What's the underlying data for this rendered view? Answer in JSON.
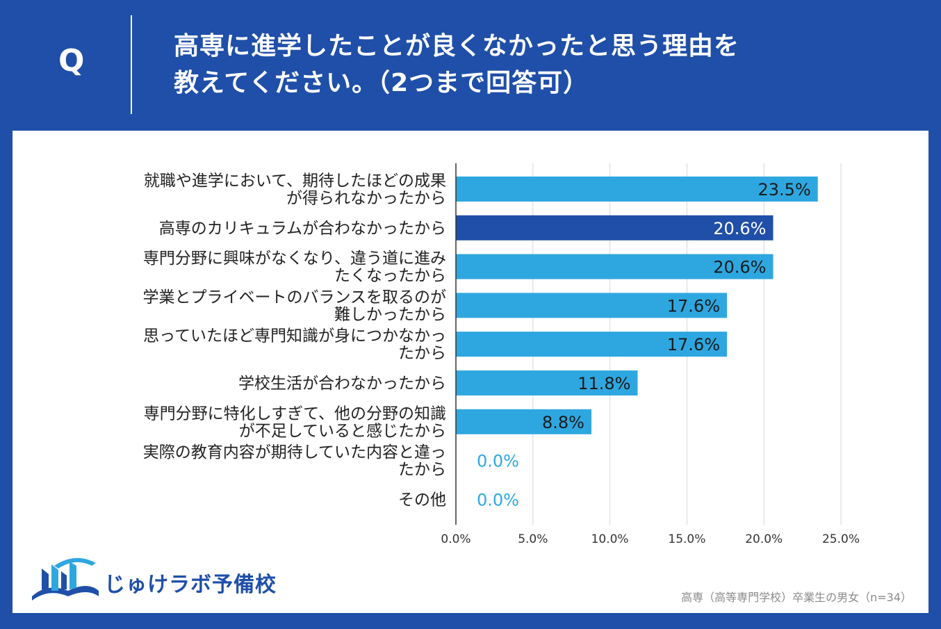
{
  "header": {
    "q_label": "Q",
    "title_line1": "高専に進学したことが良くなかったと思う理由を",
    "title_line2": "教えてください。（2つまで回答可）"
  },
  "brand": {
    "name": "じゅけラボ予備校"
  },
  "footnote": "高専（高等専門学校）卒業生の男女（n=34）",
  "colors": {
    "header_bg": "#1f4fa8",
    "bar": "#2ea7e0",
    "bar_highlight": "#1f4fa8",
    "zero_label": "#2ea7e0"
  },
  "chart_data": {
    "type": "bar",
    "orientation": "horizontal",
    "title": "高専に進学したことが良くなかったと思う理由を教えてください。（2つまで回答可）",
    "categories": [
      [
        "就職や進学において、期待したほどの成果",
        "が得られなかったから"
      ],
      [
        "高専のカリキュラムが合わなかったから"
      ],
      [
        "専門分野に興味がなくなり、違う道に進み",
        "たくなったから"
      ],
      [
        "学業とプライベートのバランスを取るのが",
        "難しかったから"
      ],
      [
        "思っていたほど専門知識が身につかなかっ",
        "たから"
      ],
      [
        "学校生活が合わなかったから"
      ],
      [
        "専門分野に特化しすぎて、他の分野の知識",
        "が不足していると感じたから"
      ],
      [
        "実際の教育内容が期待していた内容と違っ",
        "たから"
      ],
      [
        "その他"
      ]
    ],
    "values": [
      23.5,
      20.6,
      20.6,
      17.6,
      17.6,
      11.8,
      8.8,
      0.0,
      0.0
    ],
    "value_labels": [
      "23.5%",
      "20.6%",
      "20.6%",
      "17.6%",
      "17.6%",
      "11.8%",
      "8.8%",
      "0.0%",
      "0.0%"
    ],
    "highlight_index": 1,
    "xlim": [
      0,
      25
    ],
    "ticks": [
      0,
      5,
      10,
      15,
      20,
      25
    ],
    "tick_labels": [
      "0.0%",
      "5.0%",
      "10.0%",
      "15.0%",
      "20.0%",
      "25.0%"
    ],
    "grid": true,
    "unit": "%"
  }
}
